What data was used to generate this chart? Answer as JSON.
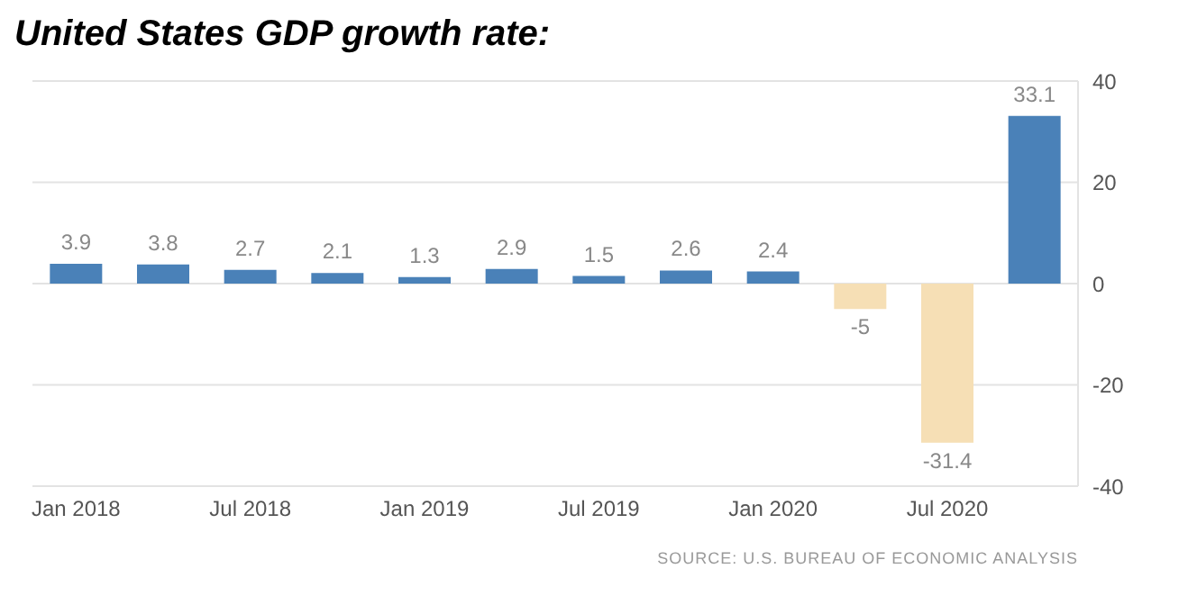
{
  "chart_data": {
    "type": "bar",
    "title": "United States GDP growth rate:",
    "categories": [
      "Jan 2018",
      null,
      "Jul 2018",
      null,
      "Jan 2019",
      null,
      "Jul 2019",
      null,
      "Jan 2020",
      null,
      "Jul 2020",
      null
    ],
    "values": [
      3.9,
      3.8,
      2.7,
      2.1,
      1.3,
      2.9,
      1.5,
      2.6,
      2.4,
      -5,
      -31.4,
      33.1
    ],
    "colors": [
      "#4a81b8",
      "#4a81b8",
      "#4a81b8",
      "#4a81b8",
      "#4a81b8",
      "#4a81b8",
      "#4a81b8",
      "#4a81b8",
      "#4a81b8",
      "#f6dfb5",
      "#f6dfb5",
      "#4a81b8"
    ],
    "ylim": [
      -40,
      40
    ],
    "yticks": [
      -40,
      -20,
      0,
      20,
      40
    ],
    "grid": "y",
    "data_labels": true,
    "annotations": [
      "SOURCE: U.S. BUREAU OF ECONOMIC ANALYSIS"
    ]
  }
}
